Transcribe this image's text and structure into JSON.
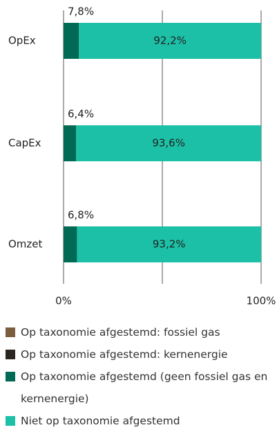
{
  "chart_data": {
    "type": "stacked_bar_horizontal",
    "categories": [
      "OpEx",
      "CapEx",
      "Omzet"
    ],
    "series": [
      {
        "name": "Op taxonomie afgestemd: fossiel gas",
        "color": "#7b5e40",
        "values": [
          0,
          0,
          0
        ]
      },
      {
        "name": "Op taxonomie afgestemd: kernenergie",
        "color": "#2b2620",
        "values": [
          0,
          0,
          0
        ]
      },
      {
        "name": "Op taxonomie afgestemd (geen fossiel gas en kernenergie)",
        "color": "#006a55",
        "values": [
          7.8,
          6.4,
          6.8
        ],
        "value_labels": [
          "7,8%",
          "6,4%",
          "6,8%"
        ]
      },
      {
        "name": "Niet op taxonomie afgestemd",
        "color": "#1cc0a6",
        "values": [
          92.2,
          93.6,
          93.2
        ],
        "value_labels": [
          "92,2%",
          "93,6%",
          "93,2%"
        ]
      }
    ],
    "xlim": [
      0,
      100
    ],
    "xticks": [
      {
        "value": 0,
        "label": "0%"
      },
      {
        "value": 100,
        "label": "100%"
      }
    ],
    "xgrid": [
      0,
      50,
      100
    ]
  }
}
